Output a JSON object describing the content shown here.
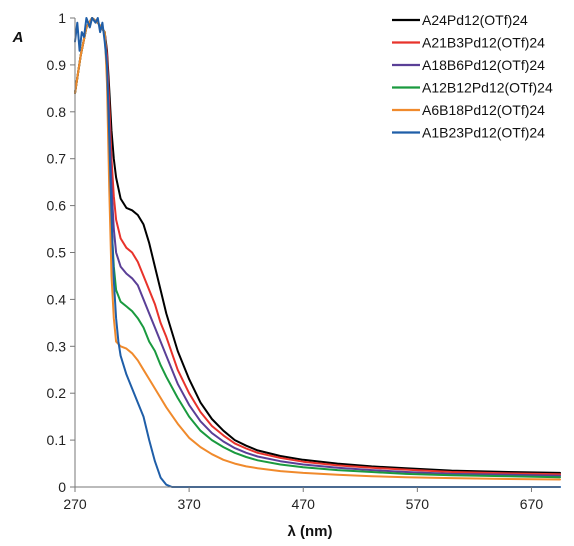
{
  "chart_data": {
    "type": "line",
    "title": "",
    "xlabel": "λ (nm)",
    "ylabel": "A",
    "xlim": [
      270,
      695
    ],
    "ylim": [
      0,
      1
    ],
    "x_ticks": [
      270,
      370,
      470,
      570,
      670
    ],
    "y_ticks": [
      0,
      0.1,
      0.2,
      0.3,
      0.4,
      0.5,
      0.6,
      0.7,
      0.8,
      0.9,
      1
    ],
    "y_tick_labels": [
      "0",
      "0.1",
      "0.2",
      "0.3",
      "0.4",
      "0.5",
      "0.6",
      "0.7",
      "0.8",
      "0.9",
      "1"
    ],
    "grid": false,
    "legend_position": "top-right",
    "series": [
      {
        "name": "A24Pd12(OTf)24",
        "color": "#000000",
        "x": [
          270,
          275,
          280,
          285,
          290,
          293,
          296,
          298,
          300,
          302,
          304,
          306,
          310,
          315,
          320,
          325,
          330,
          335,
          340,
          345,
          350,
          360,
          370,
          380,
          390,
          400,
          410,
          420,
          430,
          450,
          470,
          500,
          530,
          560,
          600,
          650,
          695
        ],
        "y": [
          0.84,
          0.92,
          0.98,
          1.0,
          0.99,
          0.98,
          0.97,
          0.93,
          0.85,
          0.76,
          0.7,
          0.66,
          0.615,
          0.595,
          0.59,
          0.58,
          0.56,
          0.52,
          0.47,
          0.42,
          0.37,
          0.29,
          0.23,
          0.18,
          0.145,
          0.12,
          0.1,
          0.088,
          0.078,
          0.066,
          0.058,
          0.05,
          0.044,
          0.04,
          0.035,
          0.032,
          0.03
        ]
      },
      {
        "name": "A21B3Pd12(OTf)24",
        "color": "#e8332b",
        "x": [
          270,
          275,
          280,
          285,
          290,
          293,
          296,
          298,
          300,
          302,
          304,
          306,
          310,
          315,
          320,
          325,
          330,
          335,
          340,
          345,
          350,
          360,
          370,
          380,
          390,
          400,
          410,
          420,
          430,
          450,
          470,
          500,
          530,
          560,
          600,
          650,
          695
        ],
        "y": [
          0.84,
          0.92,
          0.98,
          1.0,
          0.99,
          0.98,
          0.97,
          0.92,
          0.82,
          0.7,
          0.62,
          0.57,
          0.53,
          0.51,
          0.5,
          0.48,
          0.45,
          0.42,
          0.39,
          0.35,
          0.32,
          0.25,
          0.2,
          0.16,
          0.13,
          0.11,
          0.093,
          0.082,
          0.073,
          0.062,
          0.054,
          0.046,
          0.041,
          0.037,
          0.032,
          0.029,
          0.027
        ]
      },
      {
        "name": "A18B6Pd12(OTf)24",
        "color": "#5a3f97",
        "x": [
          270,
          275,
          280,
          285,
          290,
          293,
          296,
          298,
          300,
          302,
          304,
          306,
          310,
          315,
          320,
          325,
          330,
          335,
          340,
          345,
          350,
          360,
          370,
          380,
          390,
          400,
          410,
          420,
          430,
          450,
          470,
          500,
          530,
          560,
          600,
          650,
          695
        ],
        "y": [
          0.84,
          0.92,
          0.98,
          1.0,
          0.99,
          0.98,
          0.97,
          0.9,
          0.78,
          0.64,
          0.55,
          0.5,
          0.47,
          0.455,
          0.445,
          0.43,
          0.4,
          0.37,
          0.34,
          0.31,
          0.28,
          0.22,
          0.175,
          0.14,
          0.115,
          0.097,
          0.083,
          0.073,
          0.065,
          0.055,
          0.048,
          0.041,
          0.036,
          0.032,
          0.028,
          0.026,
          0.024
        ]
      },
      {
        "name": "A12B12Pd12(OTf)24",
        "color": "#1a9a3f",
        "x": [
          270,
          275,
          280,
          285,
          290,
          293,
          296,
          298,
          300,
          302,
          304,
          306,
          310,
          315,
          320,
          325,
          330,
          335,
          340,
          345,
          350,
          360,
          370,
          380,
          390,
          400,
          410,
          420,
          430,
          450,
          470,
          500,
          530,
          560,
          600,
          650,
          695
        ],
        "y": [
          0.84,
          0.92,
          0.98,
          1.0,
          0.99,
          0.98,
          0.97,
          0.88,
          0.72,
          0.56,
          0.47,
          0.42,
          0.395,
          0.385,
          0.375,
          0.36,
          0.34,
          0.31,
          0.29,
          0.26,
          0.235,
          0.19,
          0.15,
          0.12,
          0.1,
          0.085,
          0.073,
          0.064,
          0.057,
          0.048,
          0.042,
          0.036,
          0.032,
          0.028,
          0.025,
          0.023,
          0.021
        ]
      },
      {
        "name": "A6B18Pd12(OTf)24",
        "color": "#f08a2c",
        "x": [
          270,
          275,
          280,
          285,
          290,
          293,
          296,
          298,
          300,
          302,
          304,
          306,
          310,
          315,
          320,
          325,
          330,
          335,
          340,
          345,
          350,
          360,
          370,
          380,
          390,
          400,
          410,
          420,
          430,
          450,
          470,
          500,
          530,
          560,
          600,
          650,
          695
        ],
        "y": [
          0.84,
          0.92,
          0.98,
          1.0,
          0.99,
          0.98,
          0.97,
          0.86,
          0.64,
          0.45,
          0.36,
          0.31,
          0.3,
          0.295,
          0.285,
          0.27,
          0.25,
          0.23,
          0.21,
          0.19,
          0.17,
          0.135,
          0.105,
          0.085,
          0.07,
          0.058,
          0.05,
          0.044,
          0.04,
          0.034,
          0.03,
          0.026,
          0.023,
          0.021,
          0.019,
          0.017,
          0.016
        ]
      },
      {
        "name": "A1B23Pd12(OTf)24",
        "color": "#1f5ea8",
        "x": [
          270,
          272,
          274,
          276,
          278,
          280,
          283,
          285,
          288,
          290,
          292,
          294,
          296,
          298,
          300,
          302,
          304,
          306,
          308,
          310,
          315,
          320,
          325,
          330,
          335,
          340,
          345,
          350,
          355,
          360,
          370,
          400,
          450,
          500,
          550,
          600,
          650,
          695
        ],
        "y": [
          0.95,
          0.99,
          0.93,
          0.97,
          0.96,
          1.0,
          0.98,
          1.0,
          0.99,
          1.0,
          0.97,
          0.99,
          0.95,
          0.9,
          0.75,
          0.58,
          0.44,
          0.36,
          0.31,
          0.28,
          0.24,
          0.21,
          0.18,
          0.15,
          0.1,
          0.055,
          0.02,
          0.005,
          0.0,
          0.0,
          0.0,
          0.0,
          0.0,
          0.0,
          0.0,
          0.0,
          0.0,
          0.0
        ]
      }
    ]
  }
}
